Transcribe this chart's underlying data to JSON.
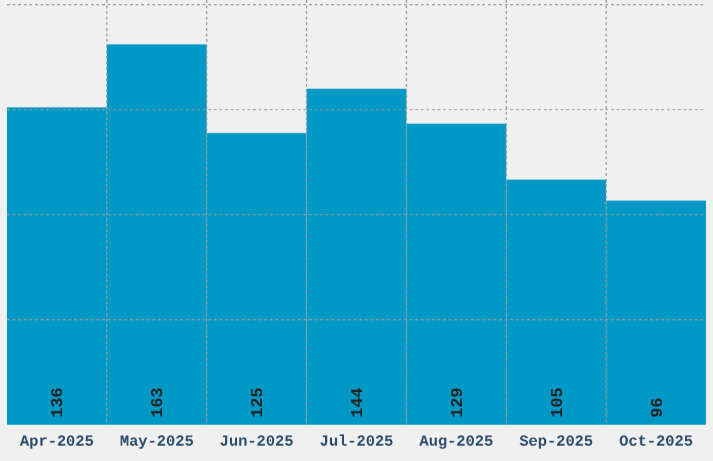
{
  "chart_data": {
    "type": "bar",
    "categories": [
      "Apr-2025",
      "May-2025",
      "Jun-2025",
      "Jul-2025",
      "Aug-2025",
      "Sep-2025",
      "Oct-2025"
    ],
    "values": [
      136,
      163,
      125,
      144,
      129,
      105,
      96
    ],
    "color": "#0099c6",
    "data_labels": true,
    "ylim": [
      0,
      182
    ],
    "yticks": [
      {
        "value": 45,
        "label": null
      },
      {
        "value": 90,
        "label": null
      },
      {
        "value": 135,
        "label": null
      },
      {
        "value": 180,
        "label": null
      }
    ],
    "grid": true,
    "tick_labels": "x"
  }
}
